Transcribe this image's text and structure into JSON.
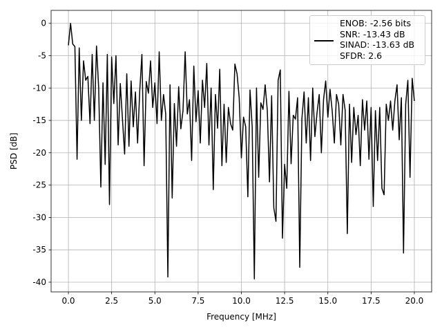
{
  "chart_data": {
    "type": "line",
    "xlabel": "Frequency [MHz]",
    "ylabel": "PSD [dB]",
    "x": [
      0,
      0.125,
      0.25,
      0.375,
      0.5,
      0.625,
      0.75,
      0.875,
      1,
      1.125,
      1.25,
      1.375,
      1.5,
      1.625,
      1.75,
      1.875,
      2,
      2.125,
      2.25,
      2.375,
      2.5,
      2.625,
      2.75,
      2.875,
      3,
      3.125,
      3.25,
      3.375,
      3.5,
      3.625,
      3.75,
      3.875,
      4,
      4.125,
      4.25,
      4.375,
      4.5,
      4.625,
      4.75,
      4.875,
      5,
      5.125,
      5.25,
      5.375,
      5.5,
      5.625,
      5.75,
      5.875,
      6,
      6.125,
      6.25,
      6.375,
      6.5,
      6.625,
      6.75,
      6.875,
      7,
      7.125,
      7.25,
      7.375,
      7.5,
      7.625,
      7.75,
      7.875,
      8,
      8.125,
      8.25,
      8.375,
      8.5,
      8.625,
      8.75,
      8.875,
      9,
      9.125,
      9.25,
      9.375,
      9.5,
      9.625,
      9.75,
      9.875,
      10,
      10.125,
      10.25,
      10.375,
      10.5,
      10.625,
      10.75,
      10.875,
      11,
      11.125,
      11.25,
      11.375,
      11.5,
      11.625,
      11.75,
      11.875,
      12,
      12.125,
      12.25,
      12.375,
      12.5,
      12.625,
      12.75,
      12.875,
      13,
      13.125,
      13.25,
      13.375,
      13.5,
      13.625,
      13.75,
      13.875,
      14,
      14.125,
      14.25,
      14.375,
      14.5,
      14.625,
      14.75,
      14.875,
      15,
      15.125,
      15.25,
      15.375,
      15.5,
      15.625,
      15.75,
      15.875,
      16,
      16.125,
      16.25,
      16.375,
      16.5,
      16.625,
      16.75,
      16.875,
      17,
      17.125,
      17.25,
      17.375,
      17.5,
      17.625,
      17.75,
      17.875,
      18,
      18.125,
      18.25,
      18.375,
      18.5,
      18.625,
      18.75,
      18.875,
      19,
      19.125,
      19.25,
      19.375,
      19.5,
      19.625,
      19.75,
      19.875,
      20
    ],
    "series": [
      {
        "name": "ENOB: -2.56 bits\nSNR: -13.43 dB\nSINAD: -13.63 dB\nSFDR: 2.6",
        "color": "#000000",
        "values": [
          -3.4,
          0,
          -3.2,
          -3.6,
          -21,
          -3.8,
          -15,
          -5.8,
          -8.8,
          -8.2,
          -15.5,
          -4.8,
          -15,
          -3.5,
          -10,
          -25.3,
          -9.2,
          -21.8,
          -4.8,
          -28,
          -5.2,
          -12.4,
          -5,
          -18.8,
          -9.3,
          -14.8,
          -20.2,
          -7.8,
          -19,
          -8.9,
          -16,
          -10.6,
          -18.5,
          -10.4,
          -4.8,
          -22,
          -9,
          -10.8,
          -5.8,
          -13,
          -9.2,
          -15.5,
          -4.4,
          -15,
          -11,
          -14,
          -39.2,
          -9.5,
          -27,
          -12.4,
          -19,
          -9.8,
          -16.3,
          -13.5,
          -4.4,
          -14,
          -11.8,
          -21.2,
          -6.6,
          -15.2,
          -10.4,
          -18.5,
          -8.8,
          -13,
          -6.2,
          -18.8,
          -10,
          -25.7,
          -11,
          -16.2,
          -7.1,
          -22,
          -12.5,
          -21.5,
          -13,
          -15.5,
          -16.5,
          -6.3,
          -7.8,
          -11.5,
          -20.8,
          -14.5,
          -16,
          -26.8,
          -10.3,
          -16,
          -39.5,
          -10,
          -23.8,
          -12.3,
          -13.3,
          -9.5,
          -13.5,
          -24.5,
          -11.2,
          -28.5,
          -30.6,
          -8.8,
          -7.2,
          -33.2,
          -21.8,
          -25.5,
          -10.5,
          -21.7,
          -14.2,
          -14.8,
          -11.5,
          -37.7,
          -14.7,
          -10.6,
          -18.5,
          -11.5,
          -21.2,
          -10,
          -17.5,
          -13.8,
          -11,
          -20,
          -11.8,
          -8.9,
          -14.5,
          -10.2,
          -13.5,
          -18.5,
          -11,
          -12.5,
          -18.8,
          -11,
          -13.4,
          -32.5,
          -12.5,
          -21.5,
          -13,
          -17.2,
          -14.2,
          -22,
          -11.8,
          -16.5,
          -12,
          -21,
          -13,
          -28.3,
          -13.5,
          -21.2,
          -13,
          -25.5,
          -26.5,
          -12.5,
          -15,
          -12,
          -16.5,
          -12,
          -9.5,
          -18,
          -11.5,
          -35.5,
          -12.5,
          -8.8,
          -23.8,
          -8.5,
          -12
        ]
      }
    ],
    "xlim": [
      -1,
      21
    ],
    "ylim": [
      -41.5,
      2
    ],
    "xticks": [
      {
        "value": 0,
        "label": "0.0"
      },
      2.5,
      {
        "value": 5,
        "label": "5.0"
      },
      7.5,
      {
        "value": 10,
        "label": "10.0"
      },
      12.5,
      {
        "value": 15,
        "label": "15.0"
      },
      17.5,
      {
        "value": 20,
        "label": "20.0"
      }
    ],
    "yticks": [
      0,
      -5,
      -10,
      -15,
      -20,
      -25,
      -30,
      -35,
      -40
    ],
    "grid": true,
    "legend": "upper right"
  }
}
